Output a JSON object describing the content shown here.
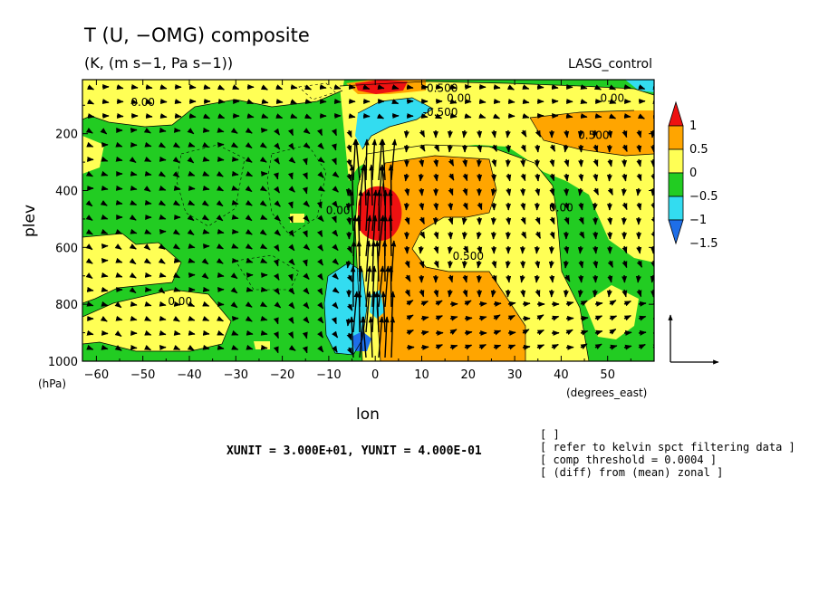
{
  "chart_data": {
    "type": "heatmap",
    "title": "T (U, −OMG) composite",
    "subtitle": "(K, (m s−1, Pa s−1))",
    "experiment": "LASG_control",
    "xlabel": "lon",
    "xunit": "(degrees_east)",
    "ylabel": "plev",
    "yunit": "(hPa)",
    "xlim": [
      -63,
      60
    ],
    "ylim": [
      1000,
      10
    ],
    "y_reversed": true,
    "x_ticks": [
      -60,
      -50,
      -40,
      -30,
      -20,
      -10,
      0,
      10,
      20,
      30,
      40,
      50
    ],
    "x_tick_labels": [
      "−60",
      "−50",
      "−40",
      "−30",
      "−20",
      "−10",
      "0",
      "10",
      "20",
      "30",
      "40",
      "50"
    ],
    "y_ticks": [
      200,
      400,
      600,
      800,
      1000
    ],
    "y_tick_labels": [
      "200",
      "400",
      "600",
      "800",
      "1000"
    ],
    "colorbar": {
      "levels": [
        -1.5,
        -1,
        -0.5,
        0,
        0.5,
        1
      ],
      "labels": [
        "−1.5",
        "−1",
        "−0.5",
        "0",
        "0.5",
        "1"
      ],
      "colors": [
        "#1e6ee8",
        "#33dcf0",
        "#22cc22",
        "#ffff55",
        "#ffa500",
        "#ee1111"
      ]
    },
    "contour_labels": [
      {
        "text": "0.00",
        "x": -50,
        "p": 90
      },
      {
        "text": "0.00",
        "x": -42,
        "p": 790
      },
      {
        "text": "-0.500",
        "x": 14,
        "p": 40
      },
      {
        "text": "0.00",
        "x": 18,
        "p": 75
      },
      {
        "text": "-0.500",
        "x": 14,
        "p": 125
      },
      {
        "text": "0.00",
        "x": 51,
        "p": 75
      },
      {
        "text": "0.500",
        "x": 47,
        "p": 205
      },
      {
        "text": "0.00",
        "x": 40,
        "p": 460
      },
      {
        "text": "0.500",
        "x": 20,
        "p": 630
      },
      {
        "text": "0.00",
        "x": -8,
        "p": 470
      }
    ],
    "vector_reference": {
      "label": "XUNIT = 3.000E+01, YUNIT = 4.000E-01"
    },
    "notes": [
      "[  ]",
      "[ refer to kelvin spct filtering data ]",
      "[ comp threshold = 0.0004 ]",
      "[ (diff) from (mean) zonal ]"
    ]
  }
}
